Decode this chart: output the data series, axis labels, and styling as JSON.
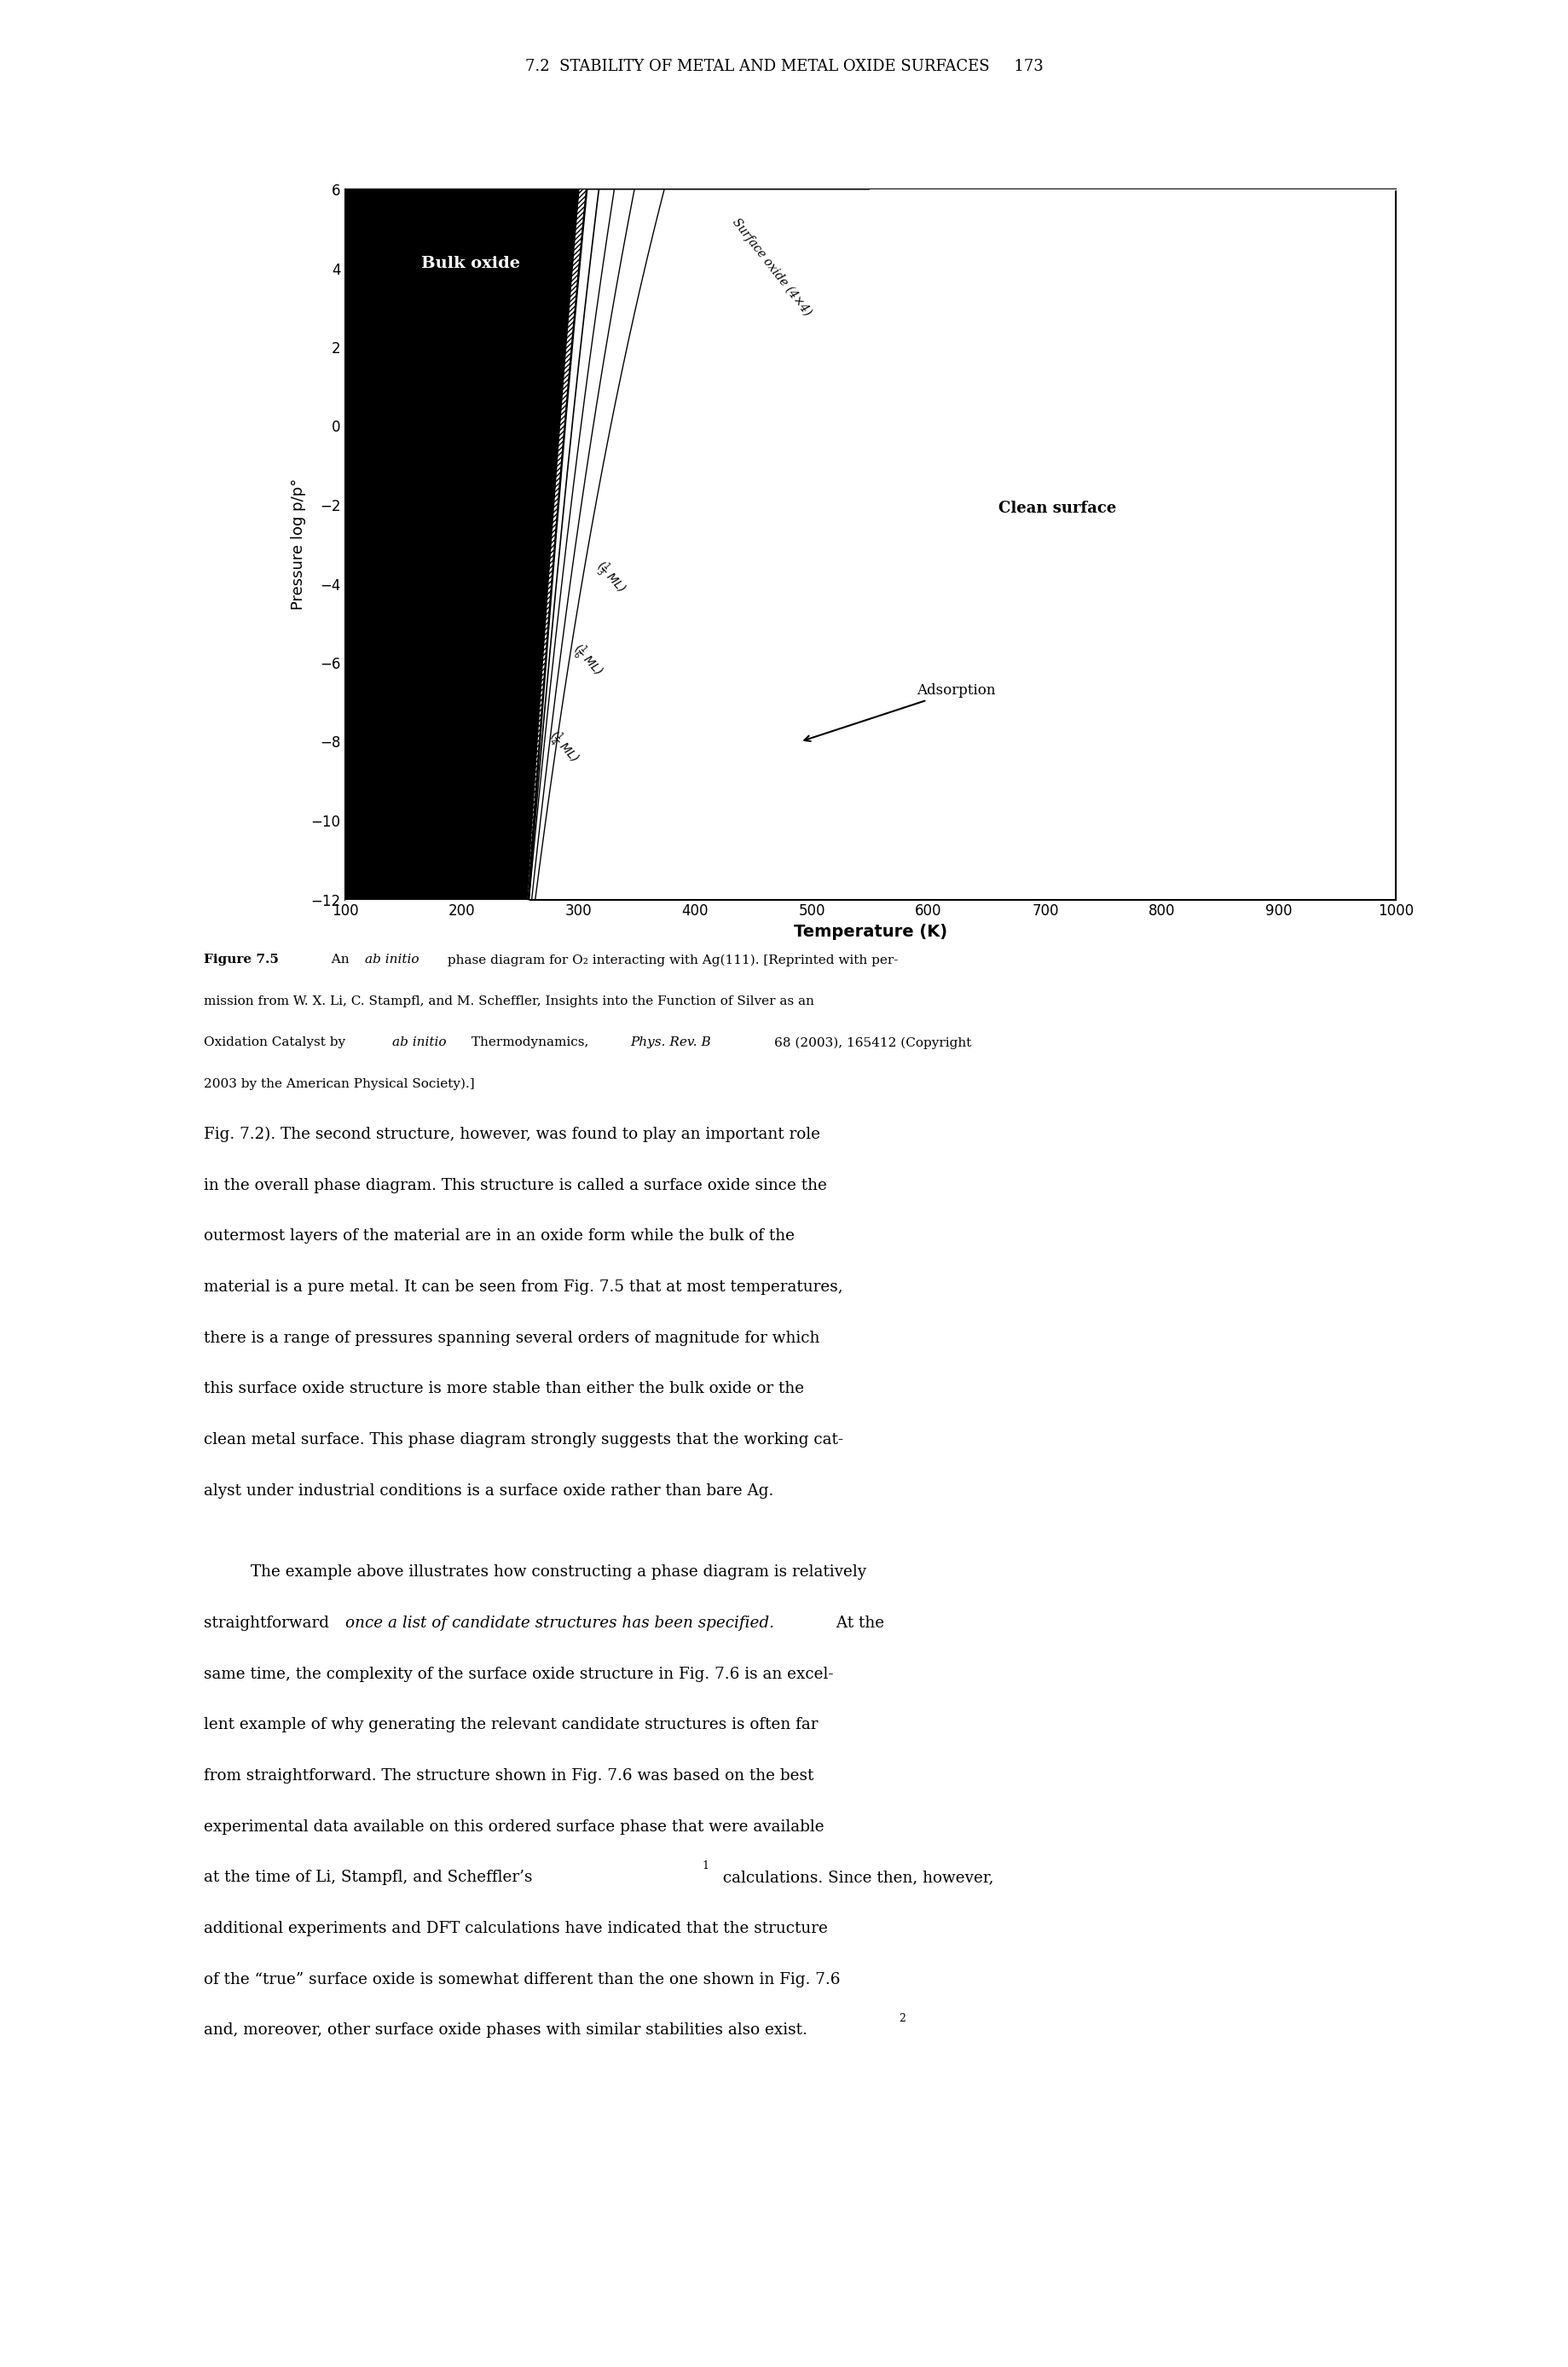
{
  "title": "7.2  STABILITY OF METAL AND METAL OXIDE SURFACES",
  "page_number": "173",
  "xlabel": "Temperature (K)",
  "ylabel": "Pressure log p/p°",
  "xlim": [
    100,
    1000
  ],
  "ylim": [
    -12,
    6
  ],
  "xticks": [
    100,
    200,
    300,
    400,
    500,
    600,
    700,
    800,
    900,
    1000
  ],
  "yticks": [
    -12,
    -10,
    -8,
    -6,
    -4,
    -2,
    0,
    2,
    4,
    6
  ],
  "figure_bg_color": "#ffffff"
}
